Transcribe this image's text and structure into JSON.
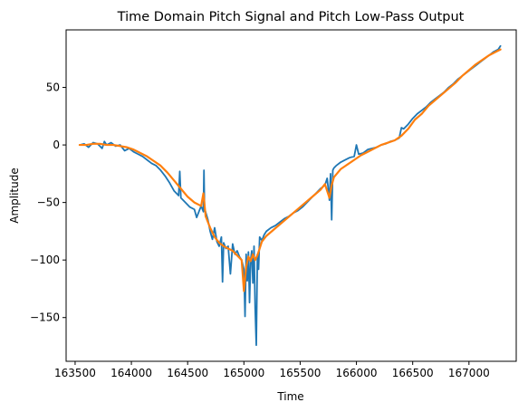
{
  "chart_data": {
    "type": "line",
    "title": "Time Domain Pitch Signal and Pitch Low-Pass Output",
    "xlabel": "Time",
    "ylabel": "Amplitude",
    "xlim": [
      163420,
      167420
    ],
    "ylim": [
      -188,
      100
    ],
    "xticks": [
      163500,
      164000,
      164500,
      165000,
      165500,
      166000,
      166500,
      167000
    ],
    "yticks": [
      50,
      0,
      -50,
      -100,
      -150
    ],
    "grid": false,
    "legend": "none",
    "series": [
      {
        "color": "#1f77b4",
        "linewidth": 1.8,
        "x": [
          163540,
          163580,
          163620,
          163660,
          163700,
          163740,
          163760,
          163780,
          163820,
          163860,
          163900,
          163940,
          163980,
          164020,
          164060,
          164100,
          164140,
          164180,
          164220,
          164260,
          164300,
          164340,
          164380,
          164420,
          164430,
          164440,
          164480,
          164520,
          164560,
          164580,
          164600,
          164620,
          164640,
          164645,
          164650,
          164680,
          164700,
          164720,
          164740,
          164760,
          164780,
          164800,
          164810,
          164820,
          164840,
          164860,
          164880,
          164900,
          164920,
          164940,
          164960,
          164980,
          165000,
          165010,
          165020,
          165030,
          165040,
          165050,
          165060,
          165070,
          165080,
          165090,
          165100,
          165110,
          165120,
          165130,
          165140,
          165160,
          165180,
          165200,
          165240,
          165280,
          165320,
          165360,
          165400,
          165440,
          165480,
          165520,
          165560,
          165600,
          165640,
          165680,
          165720,
          165740,
          165760,
          165770,
          165780,
          165790,
          165800,
          165820,
          165860,
          165900,
          165940,
          165980,
          166000,
          166020,
          166060,
          166100,
          166140,
          166180,
          166220,
          166260,
          166300,
          166340,
          166380,
          166400,
          166420,
          166460,
          166500,
          166540,
          166580,
          166620,
          166660,
          166700,
          166740,
          166780,
          166820,
          166860,
          166900,
          166940,
          166980,
          167020,
          167060,
          167100,
          167140,
          167180,
          167220,
          167260,
          167280
        ],
        "y": [
          0,
          1,
          -2,
          2,
          1,
          -3,
          3,
          0,
          2,
          -1,
          0,
          -5,
          -3,
          -6,
          -8,
          -10,
          -13,
          -16,
          -18,
          -22,
          -27,
          -33,
          -40,
          -44,
          -23,
          -46,
          -50,
          -54,
          -56,
          -63,
          -58,
          -53,
          -58,
          -22,
          -55,
          -65,
          -75,
          -82,
          -72,
          -84,
          -88,
          -80,
          -119,
          -85,
          -90,
          -88,
          -112,
          -86,
          -95,
          -92,
          -97,
          -100,
          -108,
          -149,
          -95,
          -118,
          -93,
          -137,
          -100,
          -92,
          -120,
          -88,
          -142,
          -174,
          -95,
          -108,
          -80,
          -83,
          -78,
          -75,
          -72,
          -70,
          -67,
          -64,
          -62,
          -59,
          -57,
          -54,
          -50,
          -46,
          -42,
          -38,
          -35,
          -29,
          -48,
          -25,
          -65,
          -22,
          -20,
          -18,
          -15,
          -13,
          -11,
          -10,
          0,
          -8,
          -7,
          -4,
          -3,
          -2,
          0,
          1,
          3,
          4,
          6,
          15,
          14,
          18,
          23,
          27,
          30,
          33,
          37,
          40,
          43,
          46,
          50,
          53,
          57,
          60,
          63,
          66,
          69,
          72,
          75,
          78,
          81,
          83,
          86
        ]
      },
      {
        "color": "#ff7f0e",
        "linewidth": 2.2,
        "x": [
          163540,
          163600,
          163660,
          163720,
          163780,
          163840,
          163900,
          163960,
          164020,
          164080,
          164140,
          164200,
          164260,
          164320,
          164380,
          164440,
          164500,
          164560,
          164620,
          164640,
          164660,
          164700,
          164740,
          164780,
          164820,
          164860,
          164900,
          164940,
          164980,
          165000,
          165020,
          165040,
          165060,
          165080,
          165100,
          165120,
          165160,
          165200,
          165260,
          165320,
          165380,
          165440,
          165500,
          165560,
          165620,
          165680,
          165720,
          165760,
          165780,
          165800,
          165860,
          165920,
          165980,
          166040,
          166100,
          166160,
          166220,
          166280,
          166340,
          166400,
          166460,
          166520,
          166580,
          166640,
          166700,
          166760,
          166820,
          166880,
          166940,
          167000,
          167060,
          167120,
          167180,
          167240,
          167280
        ],
        "y": [
          0,
          0,
          1,
          1,
          0,
          0,
          -1,
          -2,
          -4,
          -7,
          -10,
          -14,
          -18,
          -24,
          -31,
          -38,
          -45,
          -50,
          -53,
          -42,
          -62,
          -72,
          -80,
          -85,
          -88,
          -90,
          -92,
          -96,
          -100,
          -127,
          -106,
          -97,
          -101,
          -95,
          -100,
          -96,
          -84,
          -79,
          -74,
          -69,
          -64,
          -59,
          -54,
          -49,
          -44,
          -39,
          -34,
          -46,
          -35,
          -28,
          -21,
          -17,
          -13,
          -9,
          -6,
          -3,
          0,
          2,
          4,
          8,
          14,
          22,
          27,
          34,
          39,
          44,
          49,
          54,
          60,
          65,
          70,
          74,
          78,
          81,
          83
        ]
      }
    ]
  }
}
